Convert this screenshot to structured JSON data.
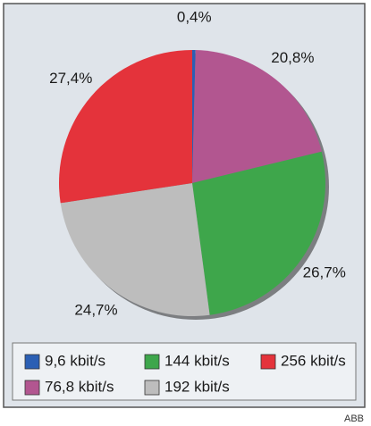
{
  "chart_data": {
    "type": "pie",
    "categories": [
      "9,6 kbit/s",
      "76,8 kbit/s",
      "144 kbit/s",
      "192 kbit/s",
      "256 kbit/s"
    ],
    "values": [
      0.4,
      20.8,
      26.7,
      24.7,
      27.4
    ],
    "value_labels": [
      "0,4%",
      "20,8%",
      "26,7%",
      "24,7%",
      "27,4%"
    ],
    "colors": [
      "#2b5fb4",
      "#b25690",
      "#3ea64b",
      "#bdbdbd",
      "#e4333b"
    ],
    "credit": "ABB"
  }
}
